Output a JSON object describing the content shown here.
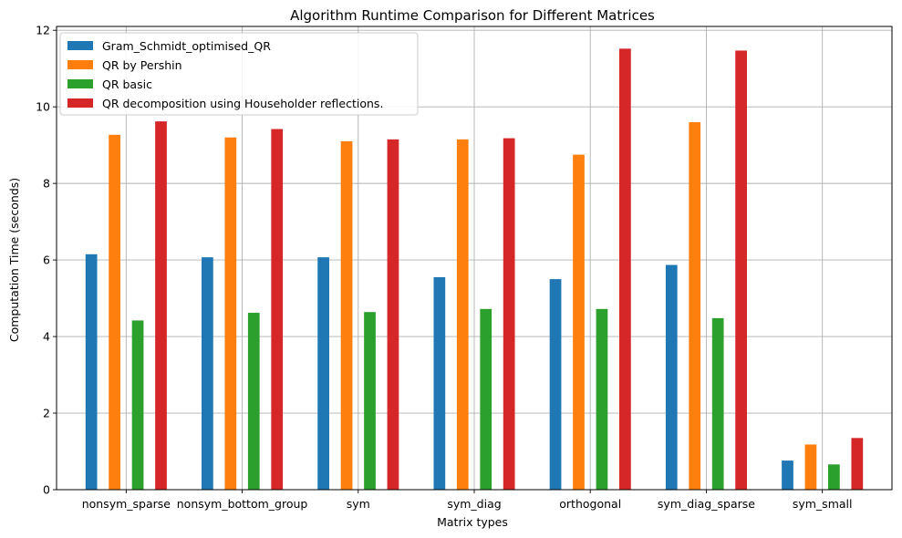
{
  "chart_data": {
    "type": "bar",
    "title": "Algorithm Runtime Comparison for Different Matrices",
    "xlabel": "Matrix types",
    "ylabel": "Computation Time (seconds)",
    "ylim": [
      0,
      12.1
    ],
    "yticks": [
      0,
      2,
      4,
      6,
      8,
      10,
      12
    ],
    "grid": true,
    "legend_position": "top-left",
    "categories": [
      "nonsym_sparse",
      "nonsym_bottom_group",
      "sym",
      "sym_diag",
      "orthogonal",
      "sym_diag_sparse",
      "sym_small"
    ],
    "series": [
      {
        "name": "Gram_Schmidt_optimised_QR",
        "color": "#1f77b4",
        "values": [
          6.15,
          6.07,
          6.07,
          5.55,
          5.5,
          5.87,
          0.76
        ]
      },
      {
        "name": "QR by Pershin",
        "color": "#ff7f0e",
        "values": [
          9.27,
          9.2,
          9.1,
          9.15,
          8.75,
          9.6,
          1.18
        ]
      },
      {
        "name": "QR basic",
        "color": "#2ca02c",
        "values": [
          4.42,
          4.62,
          4.64,
          4.72,
          4.72,
          4.48,
          0.66
        ]
      },
      {
        "name": "QR decomposition using Householder reflections.",
        "color": "#d62728",
        "values": [
          9.62,
          9.42,
          9.15,
          9.18,
          11.52,
          11.47,
          1.35
        ]
      }
    ]
  }
}
